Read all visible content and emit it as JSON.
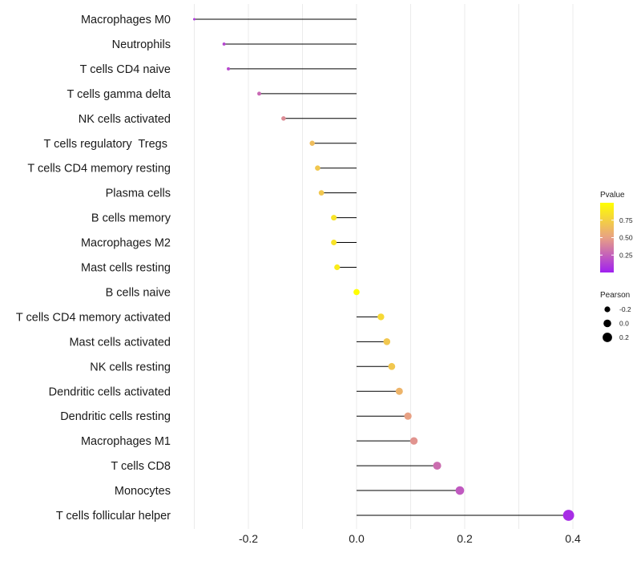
{
  "chart_data": {
    "type": "lollipop",
    "categories": [
      "Macrophages M0",
      "Neutrophils",
      "T cells CD4 naive",
      "T cells gamma delta",
      "NK cells activated",
      "T cells regulatory  Tregs ",
      "T cells CD4 memory resting",
      "Plasma cells",
      "B cells memory",
      "Macrophages M2",
      "Mast cells resting",
      "B cells naive",
      "T cells CD4 memory activated",
      "Mast cells activated",
      "NK cells resting",
      "Dendritic cells activated",
      "Dendritic cells resting",
      "Macrophages M1",
      "T cells CD8",
      "Monocytes",
      "T cells follicular helper"
    ],
    "values": [
      -0.3,
      -0.245,
      -0.237,
      -0.18,
      -0.135,
      -0.082,
      -0.072,
      -0.065,
      -0.042,
      -0.042,
      -0.036,
      0.0,
      0.045,
      0.056,
      0.065,
      0.079,
      0.095,
      0.106,
      0.149,
      0.191,
      0.392
    ],
    "pvalues": [
      0.1,
      0.15,
      0.16,
      0.28,
      0.42,
      0.65,
      0.7,
      0.7,
      0.85,
      0.85,
      0.9,
      1.0,
      0.8,
      0.7,
      0.7,
      0.6,
      0.5,
      0.45,
      0.3,
      0.22,
      0.05
    ],
    "xlim": [
      -0.3,
      0.4
    ],
    "xticks": [
      -0.2,
      0.0,
      0.2,
      0.4
    ],
    "xtick_labels": [
      "-0.2",
      "0.0",
      "0.2",
      "0.4"
    ],
    "grid": true,
    "legend": {
      "position": "right",
      "color_title": "Pvalue",
      "color_ticks": [
        0.25,
        0.5,
        0.75
      ],
      "color_tick_labels": [
        "0.25",
        "0.50",
        "0.75"
      ],
      "color_range": [
        0.0,
        1.0
      ],
      "color_low": "#a020f0",
      "color_mid": "#e8a184",
      "color_high": "#ffff00",
      "size_title": "Pearson",
      "size_values": [
        -0.2,
        0.0,
        0.2
      ],
      "size_labels": [
        "-0.2",
        "0.0",
        "0.2"
      ]
    },
    "colors": {
      "segment": "#000000",
      "grid": "#ebebeb"
    }
  }
}
